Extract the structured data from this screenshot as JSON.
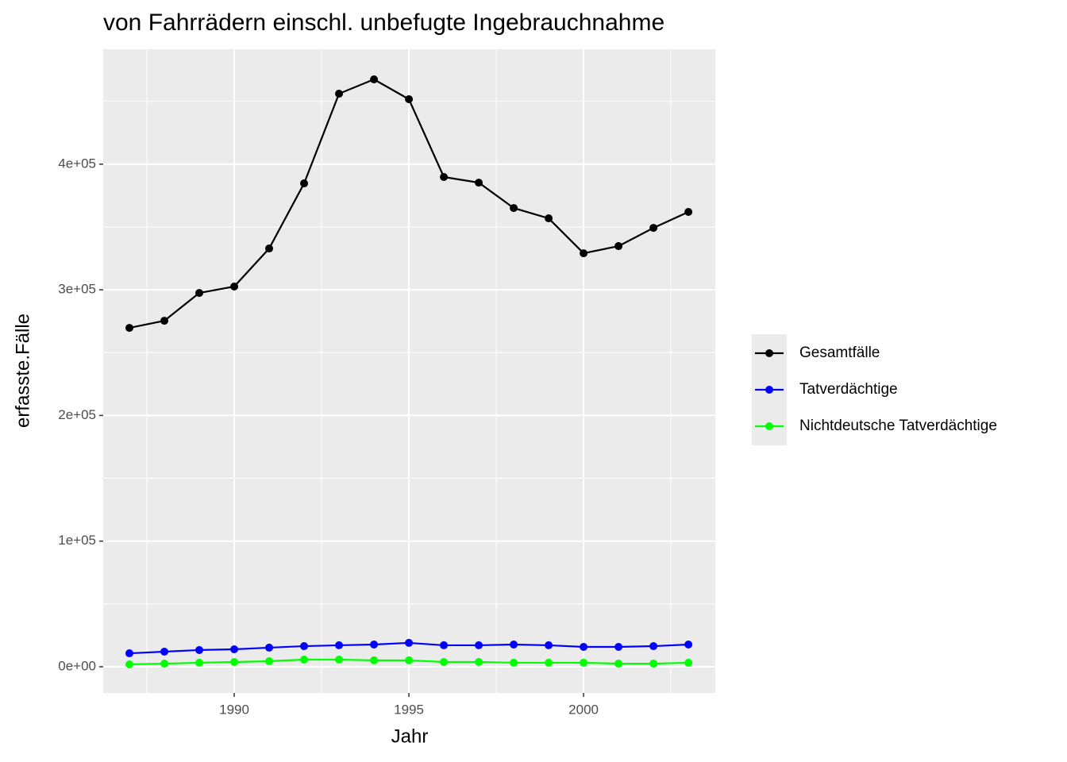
{
  "chart_data": {
    "type": "line",
    "title": "von Fahrrädern einschl. unbefugte Ingebrauchnahme",
    "x_label": "Jahr",
    "y_label": "erfasste.Fälle",
    "x": [
      1987,
      1988,
      1989,
      1990,
      1991,
      1992,
      1993,
      1994,
      1995,
      1996,
      1997,
      1998,
      1999,
      2000,
      2001,
      2002,
      2003
    ],
    "series": [
      {
        "name": "Gesamtfälle",
        "color": "#000000",
        "values": [
          269700,
          275400,
          297500,
          302600,
          332900,
          384700,
          456100,
          467500,
          451700,
          389800,
          385300,
          365100,
          356900,
          329100,
          334800,
          349300,
          362000
        ]
      },
      {
        "name": "Tatverdächtige",
        "color": "#0000ff",
        "values": [
          10700,
          12000,
          13300,
          13900,
          15200,
          16400,
          17100,
          17700,
          19000,
          17100,
          17100,
          17700,
          17100,
          15800,
          15800,
          16400,
          17700
        ]
      },
      {
        "name": "Nichtdeutsche Tatverdächtige",
        "color": "#00ff00",
        "values": [
          1900,
          2500,
          3200,
          3800,
          4400,
          5700,
          5700,
          5100,
          5100,
          3800,
          3800,
          3200,
          3200,
          3200,
          2500,
          2500,
          3200
        ]
      }
    ],
    "xlim": [
      1986.25,
      2003.77
    ],
    "ylim": [
      -20850,
      491500
    ],
    "xticks": [
      1990,
      1995,
      2000
    ],
    "yticks": [
      {
        "value": 0,
        "label": "0e+00"
      },
      {
        "value": 100000,
        "label": "1e+05"
      },
      {
        "value": 200000,
        "label": "2e+05"
      },
      {
        "value": 300000,
        "label": "3e+05"
      },
      {
        "value": 400000,
        "label": "4e+05"
      }
    ],
    "grid": true,
    "legend": "right"
  }
}
